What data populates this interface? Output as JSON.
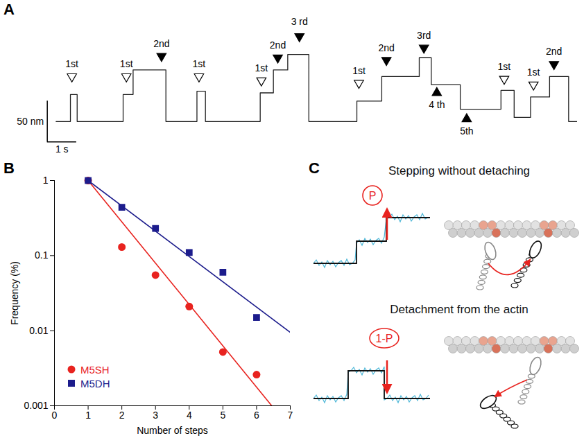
{
  "chart_data": [
    {
      "panel": "A",
      "type": "line",
      "tick_labels": false,
      "xlim": [
        -0.6,
        17.8
      ],
      "ylim": [
        -40,
        110
      ],
      "series": [
        {
          "color": "#222222",
          "line_style": "step",
          "x": [
            0,
            0.49,
            0.72,
            2.29,
            2.63,
            3.75,
            4.81,
            5.1,
            6.97,
            7.42,
            7.91,
            8.63,
            10.27,
            11.12,
            12.4,
            12.81,
            13.8,
            15.19,
            15.64,
            16.2,
            16.85,
            17.5,
            17.78
          ],
          "values": [
            0,
            33,
            0,
            33,
            63,
            0,
            37,
            0,
            35,
            63,
            82,
            0,
            25,
            55,
            78,
            45,
            15,
            38,
            5,
            30,
            55,
            0,
            0
          ]
        }
      ],
      "annotations": [
        {
          "text": "1st",
          "x": 0.54,
          "y": 55,
          "text_y": 70,
          "marker": "open"
        },
        {
          "text": "1st",
          "x": 2.4,
          "y": 55,
          "text_y": 70,
          "marker": "open"
        },
        {
          "text": "2nd",
          "x": 3.6,
          "y": 80,
          "text_y": 95,
          "marker": "filled"
        },
        {
          "text": "1st",
          "x": 4.88,
          "y": 55,
          "text_y": 70,
          "marker": "open"
        },
        {
          "text": "1st",
          "x": 7.01,
          "y": 50,
          "text_y": 65,
          "marker": "open"
        },
        {
          "text": "2nd",
          "x": 7.57,
          "y": 78,
          "text_y": 93,
          "marker": "filled"
        },
        {
          "text": "3 rd",
          "x": 8.31,
          "y": 104,
          "text_y": 122,
          "marker": "filled"
        },
        {
          "text": "1st",
          "x": 10.34,
          "y": 47,
          "text_y": 62,
          "marker": "open"
        },
        {
          "text": "2nd",
          "x": 11.28,
          "y": 75,
          "text_y": 90,
          "marker": "filled"
        },
        {
          "text": "3rd",
          "x": 12.56,
          "y": 90,
          "text_y": 105,
          "marker": "filled"
        },
        {
          "text": "4 th",
          "x": 13.0,
          "y": 35,
          "text_y": 20,
          "marker": "filled"
        },
        {
          "text": "5th",
          "x": 14.02,
          "y": 3,
          "text_y": -12,
          "marker": "filled"
        },
        {
          "text": "1st",
          "x": 15.3,
          "y": 52,
          "text_y": 67,
          "marker": "open"
        },
        {
          "text": "1st",
          "x": 16.3,
          "y": 45,
          "text_y": 60,
          "marker": "open"
        },
        {
          "text": "2nd",
          "x": 17.0,
          "y": 70,
          "text_y": 85,
          "marker": "filled"
        }
      ],
      "scale_bar": {
        "origin": [
          -0.3,
          -25
        ],
        "length_x": 1,
        "length_y": 50,
        "x_label": "1 s",
        "y_label": "50 nm"
      }
    },
    {
      "panel": "B",
      "type": "scatter",
      "log": "y",
      "x_label": "Number of steps",
      "y_label": "Frequency (%)",
      "xlim": [
        0,
        7
      ],
      "xticks": [
        0,
        1,
        2,
        3,
        4,
        5,
        6,
        7
      ],
      "ylim": [
        0.001,
        1
      ],
      "yticks": [
        0.001,
        0.01,
        0.1,
        1
      ],
      "legend": "bottom-left",
      "series": [
        {
          "name": "M5SH",
          "color": "#e8231f",
          "marker": "circle",
          "x": [
            1,
            2,
            3,
            4,
            5,
            6
          ],
          "values": [
            1,
            0.13,
            0.055,
            0.021,
            0.0052,
            0.0026
          ],
          "fit": {
            "x": [
              1,
              6.45
            ],
            "values": [
              1,
              0.001
            ]
          }
        },
        {
          "name": "M5DH",
          "color": "#1c1c8c",
          "marker": "square",
          "x": [
            1,
            2,
            3,
            4,
            5,
            6
          ],
          "values": [
            1,
            0.44,
            0.23,
            0.11,
            0.06,
            0.015
          ],
          "fit": {
            "x": [
              1,
              7
            ],
            "values": [
              1,
              0.0095
            ]
          }
        }
      ]
    }
  ],
  "diagram": {
    "panel": "C",
    "items": [
      {
        "title": "Stepping without detaching",
        "probability": "P"
      },
      {
        "title": "Detachment from the actin",
        "probability": "1-P"
      }
    ]
  }
}
